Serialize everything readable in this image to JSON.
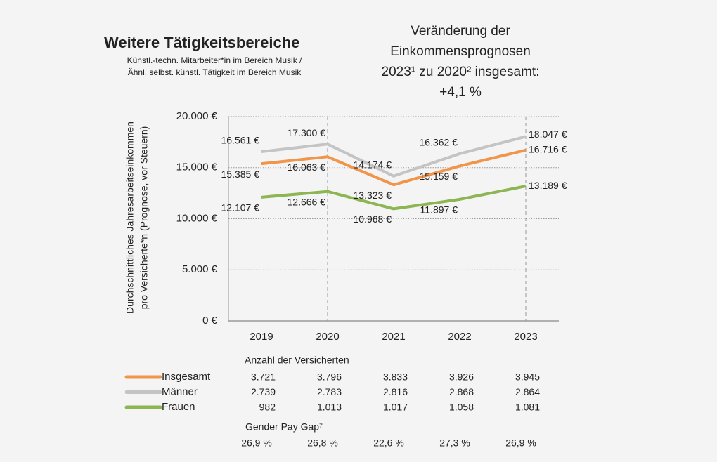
{
  "chart_data": {
    "type": "line",
    "title": "Weitere Tätigkeitsbereiche",
    "subtitle": [
      "Künstl.-techn. Mitarbeiter*in im Bereich Musik /",
      "Ähnl. selbst. künstl. Tätigkeit im Bereich Musik"
    ],
    "annotation": [
      "Veränderung der",
      "Einkommensprognosen",
      "2023¹ zu 2020² insgesamt:",
      "+4,1 %"
    ],
    "y_label": [
      "Durchschnittliches Jahresarbeitseinkommen",
      "pro Versicherte*n (Prognose, vor Steuern)"
    ],
    "categories": [
      "2019",
      "2020",
      "2021",
      "2022",
      "2023"
    ],
    "series": [
      {
        "name": "Insgesamt",
        "color": "#f0954a",
        "values": [
          15385,
          16063,
          13323,
          15159,
          16716
        ],
        "value_labels": [
          "15.385 €",
          "16.063 €",
          "13.323 €",
          "15.159 €",
          "16.716 €"
        ]
      },
      {
        "name": "Männer",
        "color": "#c4c4c4",
        "values": [
          16561,
          17300,
          14174,
          16362,
          18047
        ],
        "value_labels": [
          "16.561 €",
          "17.300 €",
          "14.174 €",
          "16.362 €",
          "18.047 €"
        ]
      },
      {
        "name": "Frauen",
        "color": "#8db552",
        "values": [
          12107,
          12666,
          10968,
          11897,
          13189
        ],
        "value_labels": [
          "12.107 €",
          "12.666 €",
          "10.968 €",
          "11.897 €",
          "13.189 €"
        ]
      }
    ],
    "ylim": [
      0,
      20000
    ],
    "yticks": [
      {
        "value": 0,
        "label": "0 €"
      },
      {
        "value": 5000,
        "label": "5.000 €"
      },
      {
        "value": 10000,
        "label": "10.000 €"
      },
      {
        "value": 15000,
        "label": "15.000 €"
      },
      {
        "value": 20000,
        "label": "20.000 €"
      }
    ],
    "grid": true,
    "table": {
      "title": "Anzahl der Versicherten",
      "rows": [
        [
          "3.721",
          "3.796",
          "3.833",
          "3.926",
          "3.945"
        ],
        [
          "2.739",
          "2.783",
          "2.816",
          "2.868",
          "2.864"
        ],
        [
          "982",
          "1.013",
          "1.017",
          "1.058",
          "1.081"
        ]
      ]
    },
    "gender_pay_gap": {
      "title": "Gender Pay Gap⁷",
      "values": [
        "26,9 %",
        "26,8 %",
        "22,6 %",
        "27,3 %",
        "26,9 %"
      ]
    }
  }
}
